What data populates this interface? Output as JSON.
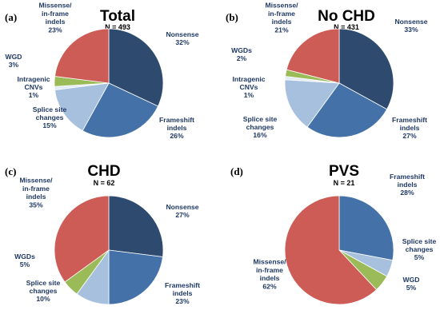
{
  "chart_data": [
    {
      "type": "pie",
      "panel": "(a)",
      "title": "Total",
      "subtitle": "N = 493",
      "slices": [
        {
          "label": [
            "Nonsense"
          ],
          "pct": "32%",
          "value": 32,
          "color": "#2e4a6e"
        },
        {
          "label": [
            "Frameshift",
            "indels"
          ],
          "pct": "26%",
          "value": 26,
          "color": "#4472a8"
        },
        {
          "label": [
            "Splice site",
            "changes"
          ],
          "pct": "15%",
          "value": 15,
          "color": "#a7c0de"
        },
        {
          "label": [
            "Intragenic",
            "CNVs"
          ],
          "pct": "1%",
          "value": 1,
          "color": "#e3ebf5"
        },
        {
          "label": [
            "WGD"
          ],
          "pct": "3%",
          "value": 3,
          "color": "#9bbb59"
        },
        {
          "label": [
            "Missense/",
            "in-frame",
            "indels"
          ],
          "pct": "23%",
          "value": 23,
          "color": "#cd5c57"
        }
      ]
    },
    {
      "type": "pie",
      "panel": "(b)",
      "title": "No CHD",
      "subtitle": "N = 431",
      "slices": [
        {
          "label": [
            "Nonsense"
          ],
          "pct": "33%",
          "value": 33,
          "color": "#2e4a6e"
        },
        {
          "label": [
            "Frameshift",
            "indels"
          ],
          "pct": "27%",
          "value": 27,
          "color": "#4472a8"
        },
        {
          "label": [
            "Splice site",
            "changes"
          ],
          "pct": "16%",
          "value": 16,
          "color": "#a7c0de"
        },
        {
          "label": [
            "Intragenic",
            "CNVs"
          ],
          "pct": "1%",
          "value": 1,
          "color": "#e3ebf5"
        },
        {
          "label": [
            "WGDs"
          ],
          "pct": "2%",
          "value": 2,
          "color": "#9bbb59"
        },
        {
          "label": [
            "Missense/",
            "in-frame",
            "indels"
          ],
          "pct": "21%",
          "value": 21,
          "color": "#cd5c57"
        }
      ]
    },
    {
      "type": "pie",
      "panel": "(c)",
      "title": "CHD",
      "subtitle": "N = 62",
      "slices": [
        {
          "label": [
            "Nonsense"
          ],
          "pct": "27%",
          "value": 27,
          "color": "#2e4a6e"
        },
        {
          "label": [
            "Frameshift",
            "indels"
          ],
          "pct": "23%",
          "value": 23,
          "color": "#4472a8"
        },
        {
          "label": [
            "Splice site",
            "changes"
          ],
          "pct": "10%",
          "value": 10,
          "color": "#a7c0de"
        },
        {
          "label": [
            "WGDs"
          ],
          "pct": "5%",
          "value": 5,
          "color": "#9bbb59"
        },
        {
          "label": [
            "Missense/",
            "in-frame",
            "indels"
          ],
          "pct": "35%",
          "value": 35,
          "color": "#cd5c57"
        }
      ]
    },
    {
      "type": "pie",
      "panel": "(d)",
      "title": "PVS",
      "subtitle": "N = 21",
      "slices": [
        {
          "label": [
            "Frameshift",
            "indels"
          ],
          "pct": "28%",
          "value": 28,
          "color": "#4472a8"
        },
        {
          "label": [
            "Splice site",
            "changes"
          ],
          "pct": "5%",
          "value": 5,
          "color": "#a7c0de"
        },
        {
          "label": [
            "WGD"
          ],
          "pct": "5%",
          "value": 5,
          "color": "#9bbb59"
        },
        {
          "label": [
            "Missense/",
            "in-frame",
            "indels"
          ],
          "pct": "62%",
          "value": 62,
          "color": "#cd5c57"
        }
      ]
    }
  ]
}
